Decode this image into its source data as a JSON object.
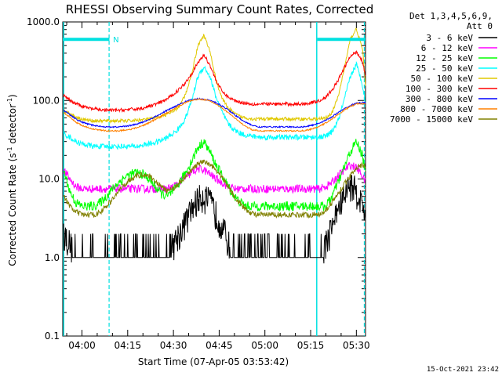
{
  "chart_data": {
    "type": "line",
    "title": "RHESSI Observing Summary Count Rates, Corrected",
    "xlabel": "Start Time (07-Apr-05 03:53:42)",
    "ylabel": "Corrected Count Rate (s",
    "ylabel_sup": "-1",
    "ylabel_mid": " detector",
    "ylabel_sup2": "-1",
    "ylabel_end": ")",
    "x_start_min": 233.7,
    "x_end_min": 333.0,
    "ylim": [
      0.1,
      1000
    ],
    "y_scale": "log",
    "y_ticks": [
      {
        "value": 1000,
        "label": "1000.0"
      },
      {
        "value": 100,
        "label": "100.0"
      },
      {
        "value": 10,
        "label": "10.0"
      },
      {
        "value": 1,
        "label": "1.0"
      },
      {
        "value": 0.1,
        "label": "0.1"
      }
    ],
    "x_ticks": [
      {
        "value": 240,
        "label": "04:00"
      },
      {
        "value": 255,
        "label": "04:15"
      },
      {
        "value": 270,
        "label": "04:30"
      },
      {
        "value": 285,
        "label": "04:45"
      },
      {
        "value": 300,
        "label": "05:00"
      },
      {
        "value": 315,
        "label": "05:15"
      },
      {
        "value": 330,
        "label": "05:30"
      }
    ],
    "legend": {
      "header1": "Det 1,3,4,5,6,9,",
      "header2": "Att 0",
      "placement": "right"
    },
    "night_bars": [
      {
        "x0": 233.7,
        "x1": 249.0,
        "y": 600
      },
      {
        "x0": 317.2,
        "x1": 333.0,
        "y": 600
      }
    ],
    "n_marker": {
      "x": 250.2,
      "y": 600,
      "label": "N"
    },
    "solid_vlines": [
      234.0,
      317.0
    ],
    "dashed_vlines": [
      248.9,
      332.6
    ],
    "series": [
      {
        "name": "3 - 6 keV",
        "color": "#000000",
        "x": [
          234,
          236,
          238,
          240,
          242,
          244,
          246,
          248,
          250,
          252,
          254,
          256,
          258,
          260,
          262,
          264,
          266,
          268,
          270,
          272,
          274,
          276,
          278,
          280,
          282,
          284,
          286,
          288,
          290,
          292,
          294,
          296,
          298,
          300,
          302,
          304,
          306,
          308,
          310,
          312,
          314,
          316,
          318,
          320,
          322,
          324,
          326,
          328,
          330,
          332,
          333
        ],
        "y": [
          2,
          1.5,
          1,
          1,
          1,
          1,
          1,
          1,
          1,
          1,
          1,
          1,
          1,
          1,
          1,
          1,
          1,
          1,
          1.5,
          2,
          2.8,
          4,
          5.5,
          6,
          5,
          3.5,
          2.5,
          1.5,
          1,
          1,
          1,
          1,
          1,
          1,
          1,
          1,
          1,
          1,
          1,
          1,
          1,
          1,
          1,
          1.5,
          2.5,
          4,
          6,
          8.5,
          7,
          4.5,
          3.5
        ]
      },
      {
        "name": "6 - 12 keV",
        "color": "#ff00ff",
        "x": [
          234,
          236,
          238,
          240,
          242,
          244,
          246,
          248,
          250,
          252,
          254,
          256,
          258,
          260,
          262,
          264,
          266,
          268,
          270,
          272,
          274,
          276,
          278,
          280,
          282,
          284,
          286,
          288,
          290,
          292,
          294,
          296,
          298,
          300,
          302,
          304,
          306,
          308,
          310,
          312,
          314,
          316,
          318,
          320,
          322,
          324,
          326,
          328,
          330,
          332,
          333
        ],
        "y": [
          13,
          10,
          8,
          7.5,
          7.5,
          7.5,
          7.5,
          7.5,
          7.5,
          7.5,
          7.5,
          7.5,
          7.5,
          7.5,
          7.5,
          7.5,
          7.5,
          7.5,
          8,
          9,
          10.5,
          12,
          13.5,
          13,
          11.5,
          10,
          9,
          8,
          7.5,
          7.5,
          7.5,
          7.5,
          7.5,
          7.5,
          7.5,
          7.5,
          7.5,
          7.5,
          7.5,
          7.5,
          7.5,
          7.5,
          7.5,
          8,
          9,
          11,
          13,
          15,
          14,
          11,
          9
        ]
      },
      {
        "name": "12 - 25 keV",
        "color": "#00ff00",
        "x": [
          234,
          236,
          238,
          240,
          242,
          244,
          246,
          248,
          250,
          252,
          254,
          256,
          258,
          260,
          262,
          264,
          266,
          268,
          270,
          272,
          274,
          276,
          278,
          280,
          282,
          284,
          286,
          288,
          290,
          292,
          294,
          296,
          298,
          300,
          302,
          304,
          306,
          308,
          310,
          312,
          314,
          316,
          318,
          320,
          322,
          324,
          326,
          328,
          330,
          332,
          333
        ],
        "y": [
          13,
          7,
          5,
          4.5,
          4.5,
          4.5,
          5,
          6,
          7.5,
          9,
          10.5,
          11.5,
          12,
          11.5,
          10,
          8,
          6.5,
          6,
          7,
          9,
          12,
          17,
          25,
          30,
          22,
          15,
          11,
          8,
          6,
          5,
          4.5,
          4.5,
          4.5,
          4.5,
          4.5,
          4.5,
          4.5,
          4.5,
          4.5,
          4.5,
          4.5,
          4.5,
          4.5,
          4.5,
          6,
          9,
          14,
          22,
          30,
          20,
          12
        ]
      },
      {
        "name": "25 - 50 keV",
        "color": "#00ffff",
        "x": [
          234,
          236,
          238,
          240,
          242,
          244,
          246,
          248,
          250,
          252,
          254,
          256,
          258,
          260,
          262,
          264,
          266,
          268,
          270,
          272,
          274,
          276,
          278,
          280,
          282,
          284,
          286,
          288,
          290,
          292,
          294,
          296,
          298,
          300,
          302,
          304,
          306,
          308,
          310,
          312,
          314,
          316,
          318,
          320,
          322,
          324,
          326,
          328,
          330,
          332,
          333
        ],
        "y": [
          38,
          34,
          30,
          28,
          27,
          26,
          26,
          26,
          26,
          26,
          26,
          26,
          26,
          27,
          28,
          29,
          31,
          34,
          38,
          45,
          60,
          100,
          200,
          270,
          200,
          110,
          70,
          50,
          42,
          38,
          36,
          35,
          34,
          34,
          34,
          34,
          34,
          34,
          34,
          34,
          34,
          34,
          34,
          35,
          40,
          55,
          100,
          200,
          290,
          160,
          90
        ]
      },
      {
        "name": "50 - 100 keV",
        "color": "#e0c800",
        "x": [
          234,
          236,
          238,
          240,
          242,
          244,
          246,
          248,
          250,
          252,
          254,
          256,
          258,
          260,
          262,
          264,
          266,
          268,
          270,
          272,
          274,
          276,
          278,
          280,
          282,
          284,
          286,
          288,
          290,
          292,
          294,
          296,
          298,
          300,
          302,
          304,
          306,
          308,
          310,
          312,
          314,
          316,
          318,
          320,
          322,
          324,
          326,
          328,
          330,
          332,
          333
        ],
        "y": [
          75,
          68,
          62,
          58,
          56,
          55,
          55,
          55,
          55,
          55,
          55,
          55,
          56,
          57,
          58,
          60,
          63,
          67,
          72,
          85,
          120,
          220,
          500,
          680,
          420,
          180,
          105,
          80,
          68,
          62,
          60,
          58,
          58,
          58,
          58,
          58,
          58,
          58,
          58,
          58,
          58,
          58,
          58,
          60,
          70,
          110,
          250,
          600,
          820,
          450,
          160
        ]
      },
      {
        "name": "100 - 300 keV",
        "color": "#ff0000",
        "x": [
          234,
          236,
          238,
          240,
          242,
          244,
          246,
          248,
          250,
          252,
          254,
          256,
          258,
          260,
          262,
          264,
          266,
          268,
          270,
          272,
          274,
          276,
          278,
          280,
          282,
          284,
          286,
          288,
          290,
          292,
          294,
          296,
          298,
          300,
          302,
          304,
          306,
          308,
          310,
          312,
          314,
          316,
          318,
          320,
          322,
          324,
          326,
          328,
          330,
          332,
          333
        ],
        "y": [
          115,
          100,
          92,
          85,
          80,
          78,
          76,
          75,
          75,
          75,
          76,
          77,
          78,
          80,
          84,
          89,
          95,
          105,
          120,
          140,
          170,
          220,
          300,
          380,
          280,
          180,
          130,
          110,
          100,
          95,
          92,
          90,
          90,
          90,
          90,
          90,
          90,
          90,
          90,
          90,
          92,
          95,
          100,
          110,
          135,
          180,
          260,
          360,
          420,
          320,
          200
        ]
      },
      {
        "name": "300 - 800 keV",
        "color": "#0000ff",
        "x": [
          234,
          236,
          238,
          240,
          242,
          244,
          246,
          248,
          250,
          252,
          254,
          256,
          258,
          260,
          262,
          264,
          266,
          268,
          270,
          272,
          274,
          276,
          278,
          280,
          282,
          284,
          286,
          288,
          290,
          292,
          294,
          296,
          298,
          300,
          302,
          304,
          306,
          308,
          310,
          312,
          314,
          316,
          318,
          320,
          322,
          324,
          326,
          328,
          330,
          332,
          333
        ],
        "y": [
          75,
          66,
          58,
          53,
          50,
          48,
          47,
          46,
          46,
          46,
          47,
          48,
          50,
          53,
          57,
          62,
          68,
          75,
          82,
          90,
          97,
          102,
          105,
          104,
          100,
          93,
          85,
          76,
          66,
          58,
          52,
          48,
          46,
          46,
          46,
          46,
          46,
          46,
          46,
          46,
          47,
          49,
          52,
          56,
          62,
          70,
          78,
          86,
          92,
          94,
          93
        ]
      },
      {
        "name": "800 - 7000 keV",
        "color": "#ff8000",
        "x": [
          234,
          236,
          238,
          240,
          242,
          244,
          246,
          248,
          250,
          252,
          254,
          256,
          258,
          260,
          262,
          264,
          266,
          268,
          270,
          272,
          274,
          276,
          278,
          280,
          282,
          284,
          286,
          288,
          290,
          292,
          294,
          296,
          298,
          300,
          302,
          304,
          306,
          308,
          310,
          312,
          314,
          316,
          318,
          320,
          322,
          324,
          326,
          328,
          330,
          332,
          333
        ],
        "y": [
          70,
          61,
          53,
          48,
          45,
          43,
          42,
          41,
          41,
          41,
          42,
          43,
          45,
          48,
          52,
          57,
          63,
          70,
          78,
          86,
          94,
          100,
          104,
          103,
          98,
          90,
          80,
          70,
          60,
          52,
          46,
          42,
          41,
          41,
          41,
          41,
          41,
          41,
          41,
          41,
          42,
          44,
          47,
          52,
          58,
          66,
          75,
          84,
          90,
          92,
          91
        ]
      },
      {
        "name": "7000 - 15000 keV",
        "color": "#808000",
        "x": [
          234,
          236,
          238,
          240,
          242,
          244,
          246,
          248,
          250,
          252,
          254,
          256,
          258,
          260,
          262,
          264,
          266,
          268,
          270,
          272,
          274,
          276,
          278,
          280,
          282,
          284,
          286,
          288,
          290,
          292,
          294,
          296,
          298,
          300,
          302,
          304,
          306,
          308,
          310,
          312,
          314,
          316,
          318,
          320,
          322,
          324,
          326,
          328,
          330,
          332,
          333
        ],
        "y": [
          6,
          4.5,
          3.8,
          3.5,
          3.5,
          3.5,
          3.8,
          4.5,
          5.5,
          7,
          8.5,
          10,
          11,
          11.5,
          11,
          9.5,
          8,
          7,
          7.5,
          9,
          11,
          13,
          15.5,
          16.5,
          15.5,
          13,
          10.5,
          8,
          6,
          4.8,
          4,
          3.6,
          3.5,
          3.5,
          3.5,
          3.5,
          3.5,
          3.5,
          3.5,
          3.5,
          3.5,
          3.5,
          3.6,
          4,
          5,
          6.5,
          8.5,
          11,
          14,
          15,
          14
        ]
      }
    ]
  },
  "footer": {
    "date_stamp": "15-Oct-2021 23:42"
  }
}
